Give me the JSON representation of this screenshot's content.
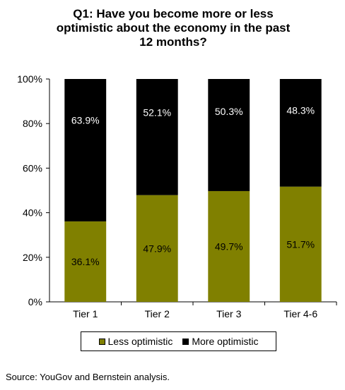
{
  "chart_data": {
    "type": "bar",
    "stacked": true,
    "title_lines": [
      "Q1: Have you become more or less",
      "optimistic about the economy in the past",
      "12 months?"
    ],
    "categories": [
      "Tier 1",
      "Tier 2",
      "Tier 3",
      "Tier 4-6"
    ],
    "series": [
      {
        "name": "Less optimistic",
        "values": [
          36.1,
          47.9,
          49.7,
          51.7
        ],
        "labels": [
          "36.1%",
          "47.9%",
          "49.7%",
          "51.7%"
        ],
        "color": "#808000",
        "label_color": "#000000"
      },
      {
        "name": "More optimistic",
        "values": [
          63.9,
          52.1,
          50.3,
          48.3
        ],
        "labels": [
          "63.9%",
          "52.1%",
          "50.3%",
          "48.3%"
        ],
        "color": "#000000",
        "label_color": "#ffffff"
      }
    ],
    "yticks": [
      "0%",
      "20%",
      "40%",
      "60%",
      "80%",
      "100%"
    ],
    "ylim": [
      0,
      100
    ],
    "grid": false,
    "legend_position": "bottom"
  },
  "source": "Source: YouGov and Bernstein analysis."
}
